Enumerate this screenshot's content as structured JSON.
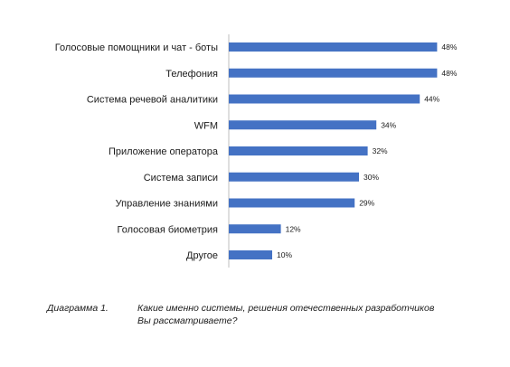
{
  "chart_data": {
    "type": "bar",
    "orientation": "horizontal",
    "categories": [
      "Голосовые помощники и чат - боты",
      "Телефония",
      "Система речевой аналитики",
      "WFM",
      "Приложение оператора",
      "Система записи",
      "Управление знаниями",
      "Голосовая биометрия",
      "Другое"
    ],
    "values": [
      48,
      48,
      44,
      34,
      32,
      30,
      29,
      12,
      10
    ],
    "value_labels": [
      "48%",
      "48%",
      "44%",
      "34%",
      "32%",
      "30%",
      "29%",
      "12%",
      "10%"
    ],
    "unit": "%",
    "xlim": [
      0,
      50
    ],
    "grid": false,
    "legend": "none",
    "bar_color": "#4472C4"
  },
  "caption": {
    "number": "Диаграмма 1.",
    "line1": "Какие именно системы, решения отечественных разработчиков",
    "line2": "Вы рассматриваете?"
  }
}
